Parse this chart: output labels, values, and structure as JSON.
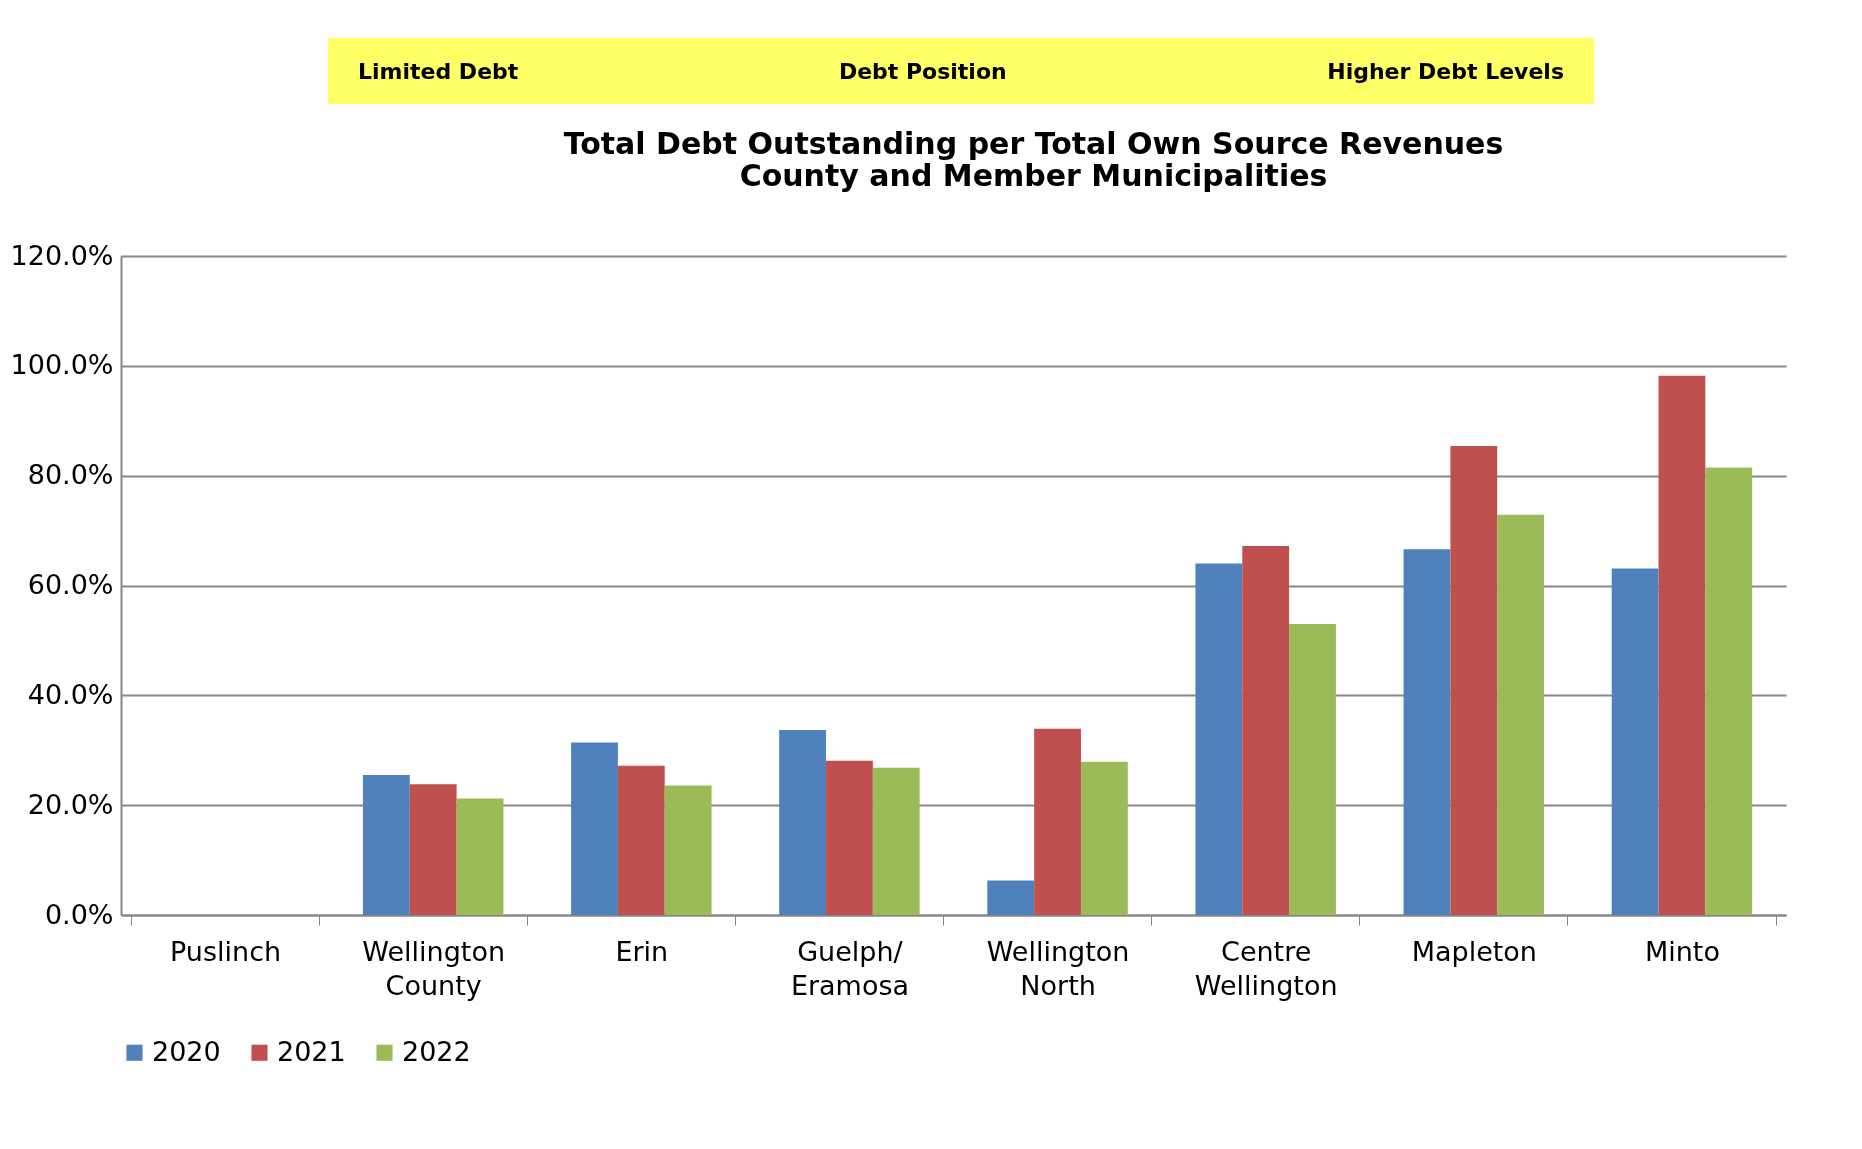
{
  "chart_data": {
    "type": "bar",
    "title": "Total Debt Outstanding per Total Own Source Revenues\nCounty and Member Municipalities",
    "annotations": [
      "Limited Debt",
      "Debt Position",
      "Higher Debt Levels"
    ],
    "categories": [
      "Puslinch",
      "Wellington County",
      "Erin",
      "Guelph/Eramosa",
      "Wellington North",
      "Centre Wellington",
      "Mapleton",
      "Minto"
    ],
    "series": [
      {
        "name": "2020",
        "color": "#4f81bd",
        "values": [
          0,
          25.5,
          31.4,
          33.7,
          6.3,
          64.0,
          66.6,
          63.1
        ]
      },
      {
        "name": "2021",
        "color": "#c0504d",
        "values": [
          0,
          23.8,
          27.2,
          28.1,
          33.9,
          67.2,
          85.4,
          98.2
        ]
      },
      {
        "name": "2022",
        "color": "#9bbb59",
        "values": [
          0,
          21.2,
          23.6,
          26.8,
          27.9,
          53.0,
          72.9,
          81.5
        ]
      }
    ],
    "ylim": [
      0,
      120
    ],
    "yticks": [
      {
        "value": 0,
        "label": "0.0%"
      },
      {
        "value": 20,
        "label": "20.0%"
      },
      {
        "value": 40,
        "label": "40.0%"
      },
      {
        "value": 60,
        "label": "60.0%"
      },
      {
        "value": 80,
        "label": "80.0%"
      },
      {
        "value": 100,
        "label": "100.0%"
      },
      {
        "value": 120,
        "label": "120.0%"
      }
    ],
    "grid": "y",
    "legend": "bottom"
  }
}
